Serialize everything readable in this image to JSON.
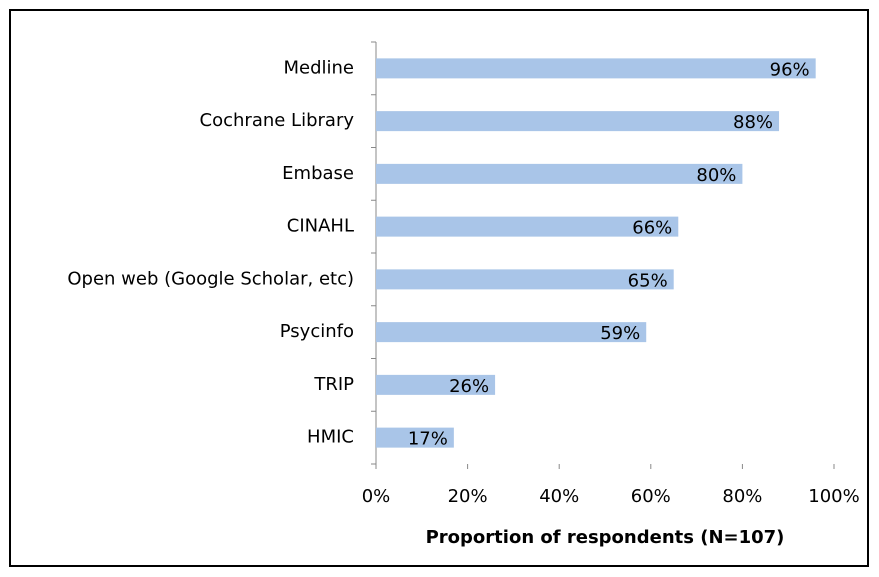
{
  "chart_data": {
    "type": "bar",
    "orientation": "horizontal",
    "categories": [
      "Medline",
      "Cochrane Library",
      "Embase",
      "CINAHL",
      "Open web (Google Scholar, etc)",
      "Psycinfo",
      "TRIP",
      "HMIC"
    ],
    "values": [
      96,
      88,
      80,
      66,
      65,
      59,
      26,
      17
    ],
    "value_labels": [
      "96%",
      "88%",
      "80%",
      "66%",
      "65%",
      "59%",
      "26%",
      "17%"
    ],
    "color": "#a9c5e8",
    "x_label": "Proportion of respondents (N=107)",
    "xlim": [
      0,
      100
    ],
    "xticks": [
      {
        "value": 0,
        "label": "0%"
      },
      {
        "value": 20,
        "label": "20%"
      },
      {
        "value": 40,
        "label": "40%"
      },
      {
        "value": 60,
        "label": "60%"
      },
      {
        "value": 80,
        "label": "80%"
      },
      {
        "value": 100,
        "label": "100%"
      }
    ],
    "grid": false
  }
}
